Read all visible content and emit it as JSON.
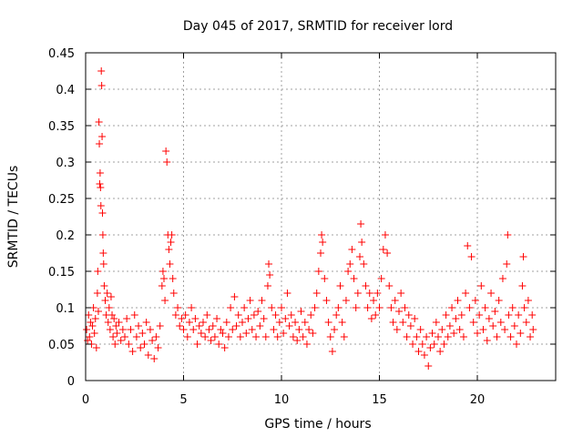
{
  "chart_data": {
    "type": "scatter",
    "title": "Day 045 of 2017, SRMTID for receiver lord",
    "xlabel": "GPS time / hours",
    "ylabel": "SRMTID / TECUs",
    "xlim": [
      0,
      24
    ],
    "ylim": [
      0,
      0.45
    ],
    "xticks": [
      0,
      5,
      10,
      15,
      20
    ],
    "xtick_labels": [
      "0",
      "5",
      "10",
      "15",
      "20"
    ],
    "yticks": [
      0,
      0.05,
      0.1,
      0.15,
      0.2,
      0.25,
      0.3,
      0.35,
      0.4,
      0.45
    ],
    "ytick_labels": [
      "0",
      "0.05",
      "0.1",
      "0.15",
      "0.2",
      "0.25",
      "0.3",
      "0.35",
      "0.4",
      "0.45"
    ],
    "grid": true,
    "marker": "+",
    "color": "#ff0000",
    "series": [
      {
        "name": "SRMTID",
        "points": [
          [
            0.05,
            0.07
          ],
          [
            0.1,
            0.055
          ],
          [
            0.15,
            0.09
          ],
          [
            0.2,
            0.06
          ],
          [
            0.25,
            0.08
          ],
          [
            0.3,
            0.05
          ],
          [
            0.35,
            0.075
          ],
          [
            0.4,
            0.1
          ],
          [
            0.45,
            0.065
          ],
          [
            0.5,
            0.085
          ],
          [
            0.55,
            0.045
          ],
          [
            0.6,
            0.12
          ],
          [
            0.62,
            0.15
          ],
          [
            0.65,
            0.095
          ],
          [
            0.68,
            0.355
          ],
          [
            0.7,
            0.325
          ],
          [
            0.72,
            0.27
          ],
          [
            0.74,
            0.285
          ],
          [
            0.76,
            0.265
          ],
          [
            0.78,
            0.24
          ],
          [
            0.8,
            0.425
          ],
          [
            0.82,
            0.405
          ],
          [
            0.84,
            0.335
          ],
          [
            0.86,
            0.23
          ],
          [
            0.88,
            0.2
          ],
          [
            0.9,
            0.175
          ],
          [
            0.92,
            0.16
          ],
          [
            0.95,
            0.13
          ],
          [
            1.0,
            0.11
          ],
          [
            1.05,
            0.09
          ],
          [
            1.1,
            0.12
          ],
          [
            1.15,
            0.08
          ],
          [
            1.2,
            0.1
          ],
          [
            1.25,
            0.07
          ],
          [
            1.3,
            0.115
          ],
          [
            1.35,
            0.09
          ],
          [
            1.4,
            0.06
          ],
          [
            1.45,
            0.085
          ],
          [
            1.5,
            0.05
          ],
          [
            1.55,
            0.075
          ],
          [
            1.6,
            0.065
          ],
          [
            1.7,
            0.08
          ],
          [
            1.8,
            0.055
          ],
          [
            1.9,
            0.07
          ],
          [
            2.0,
            0.06
          ],
          [
            2.1,
            0.085
          ],
          [
            2.2,
            0.05
          ],
          [
            2.3,
            0.07
          ],
          [
            2.4,
            0.04
          ],
          [
            2.5,
            0.09
          ],
          [
            2.6,
            0.06
          ],
          [
            2.7,
            0.075
          ],
          [
            2.8,
            0.045
          ],
          [
            2.9,
            0.065
          ],
          [
            3.0,
            0.05
          ],
          [
            3.1,
            0.08
          ],
          [
            3.2,
            0.035
          ],
          [
            3.3,
            0.07
          ],
          [
            3.4,
            0.055
          ],
          [
            3.5,
            0.03
          ],
          [
            3.6,
            0.06
          ],
          [
            3.7,
            0.045
          ],
          [
            3.8,
            0.075
          ],
          [
            3.9,
            0.13
          ],
          [
            3.95,
            0.15
          ],
          [
            4.0,
            0.14
          ],
          [
            4.05,
            0.11
          ],
          [
            4.1,
            0.315
          ],
          [
            4.15,
            0.3
          ],
          [
            4.2,
            0.2
          ],
          [
            4.25,
            0.18
          ],
          [
            4.3,
            0.16
          ],
          [
            4.35,
            0.19
          ],
          [
            4.4,
            0.2
          ],
          [
            4.45,
            0.14
          ],
          [
            4.5,
            0.12
          ],
          [
            4.6,
            0.09
          ],
          [
            4.7,
            0.1
          ],
          [
            4.8,
            0.075
          ],
          [
            4.9,
            0.085
          ],
          [
            5.0,
            0.07
          ],
          [
            5.1,
            0.09
          ],
          [
            5.2,
            0.06
          ],
          [
            5.3,
            0.08
          ],
          [
            5.4,
            0.1
          ],
          [
            5.5,
            0.07
          ],
          [
            5.6,
            0.085
          ],
          [
            5.7,
            0.05
          ],
          [
            5.8,
            0.075
          ],
          [
            5.9,
            0.065
          ],
          [
            6.0,
            0.08
          ],
          [
            6.1,
            0.06
          ],
          [
            6.2,
            0.09
          ],
          [
            6.3,
            0.07
          ],
          [
            6.4,
            0.055
          ],
          [
            6.5,
            0.075
          ],
          [
            6.6,
            0.06
          ],
          [
            6.7,
            0.085
          ],
          [
            6.8,
            0.05
          ],
          [
            6.9,
            0.07
          ],
          [
            7.0,
            0.065
          ],
          [
            7.1,
            0.045
          ],
          [
            7.2,
            0.08
          ],
          [
            7.3,
            0.06
          ],
          [
            7.4,
            0.1
          ],
          [
            7.5,
            0.07
          ],
          [
            7.6,
            0.115
          ],
          [
            7.7,
            0.075
          ],
          [
            7.8,
            0.09
          ],
          [
            7.9,
            0.06
          ],
          [
            8.0,
            0.08
          ],
          [
            8.1,
            0.1
          ],
          [
            8.2,
            0.065
          ],
          [
            8.3,
            0.085
          ],
          [
            8.4,
            0.11
          ],
          [
            8.5,
            0.07
          ],
          [
            8.6,
            0.09
          ],
          [
            8.7,
            0.06
          ],
          [
            8.8,
            0.095
          ],
          [
            8.9,
            0.075
          ],
          [
            9.0,
            0.11
          ],
          [
            9.1,
            0.085
          ],
          [
            9.2,
            0.06
          ],
          [
            9.3,
            0.13
          ],
          [
            9.35,
            0.16
          ],
          [
            9.4,
            0.145
          ],
          [
            9.5,
            0.1
          ],
          [
            9.6,
            0.07
          ],
          [
            9.7,
            0.09
          ],
          [
            9.8,
            0.06
          ],
          [
            9.9,
            0.08
          ],
          [
            10.0,
            0.1
          ],
          [
            10.1,
            0.065
          ],
          [
            10.2,
            0.085
          ],
          [
            10.3,
            0.12
          ],
          [
            10.4,
            0.075
          ],
          [
            10.5,
            0.09
          ],
          [
            10.6,
            0.06
          ],
          [
            10.7,
            0.08
          ],
          [
            10.8,
            0.055
          ],
          [
            10.9,
            0.07
          ],
          [
            11.0,
            0.095
          ],
          [
            11.1,
            0.06
          ],
          [
            11.2,
            0.08
          ],
          [
            11.3,
            0.05
          ],
          [
            11.4,
            0.07
          ],
          [
            11.5,
            0.09
          ],
          [
            11.6,
            0.065
          ],
          [
            11.7,
            0.1
          ],
          [
            11.8,
            0.12
          ],
          [
            11.9,
            0.15
          ],
          [
            12.0,
            0.175
          ],
          [
            12.05,
            0.2
          ],
          [
            12.1,
            0.19
          ],
          [
            12.2,
            0.14
          ],
          [
            12.3,
            0.11
          ],
          [
            12.4,
            0.08
          ],
          [
            12.5,
            0.06
          ],
          [
            12.6,
            0.04
          ],
          [
            12.7,
            0.07
          ],
          [
            12.8,
            0.09
          ],
          [
            12.9,
            0.1
          ],
          [
            13.0,
            0.13
          ],
          [
            13.1,
            0.08
          ],
          [
            13.2,
            0.06
          ],
          [
            13.3,
            0.11
          ],
          [
            13.4,
            0.15
          ],
          [
            13.5,
            0.16
          ],
          [
            13.6,
            0.18
          ],
          [
            13.7,
            0.14
          ],
          [
            13.8,
            0.1
          ],
          [
            13.9,
            0.12
          ],
          [
            14.0,
            0.17
          ],
          [
            14.05,
            0.215
          ],
          [
            14.1,
            0.19
          ],
          [
            14.2,
            0.16
          ],
          [
            14.3,
            0.13
          ],
          [
            14.4,
            0.1
          ],
          [
            14.5,
            0.12
          ],
          [
            14.6,
            0.085
          ],
          [
            14.7,
            0.11
          ],
          [
            14.8,
            0.09
          ],
          [
            14.9,
            0.12
          ],
          [
            15.0,
            0.1
          ],
          [
            15.1,
            0.14
          ],
          [
            15.2,
            0.18
          ],
          [
            15.3,
            0.2
          ],
          [
            15.4,
            0.175
          ],
          [
            15.5,
            0.13
          ],
          [
            15.6,
            0.1
          ],
          [
            15.7,
            0.08
          ],
          [
            15.8,
            0.11
          ],
          [
            15.9,
            0.07
          ],
          [
            16.0,
            0.095
          ],
          [
            16.1,
            0.12
          ],
          [
            16.2,
            0.08
          ],
          [
            16.3,
            0.1
          ],
          [
            16.4,
            0.06
          ],
          [
            16.5,
            0.09
          ],
          [
            16.6,
            0.075
          ],
          [
            16.7,
            0.05
          ],
          [
            16.8,
            0.085
          ],
          [
            16.9,
            0.06
          ],
          [
            17.0,
            0.04
          ],
          [
            17.1,
            0.07
          ],
          [
            17.2,
            0.05
          ],
          [
            17.3,
            0.035
          ],
          [
            17.4,
            0.06
          ],
          [
            17.5,
            0.02
          ],
          [
            17.6,
            0.045
          ],
          [
            17.7,
            0.065
          ],
          [
            17.8,
            0.05
          ],
          [
            17.9,
            0.08
          ],
          [
            18.0,
            0.06
          ],
          [
            18.1,
            0.04
          ],
          [
            18.2,
            0.07
          ],
          [
            18.3,
            0.05
          ],
          [
            18.4,
            0.09
          ],
          [
            18.5,
            0.06
          ],
          [
            18.6,
            0.075
          ],
          [
            18.7,
            0.1
          ],
          [
            18.8,
            0.065
          ],
          [
            18.9,
            0.085
          ],
          [
            19.0,
            0.11
          ],
          [
            19.1,
            0.07
          ],
          [
            19.2,
            0.09
          ],
          [
            19.3,
            0.06
          ],
          [
            19.4,
            0.12
          ],
          [
            19.5,
            0.185
          ],
          [
            19.6,
            0.1
          ],
          [
            19.7,
            0.17
          ],
          [
            19.8,
            0.08
          ],
          [
            19.9,
            0.11
          ],
          [
            20.0,
            0.065
          ],
          [
            20.1,
            0.09
          ],
          [
            20.2,
            0.13
          ],
          [
            20.3,
            0.07
          ],
          [
            20.4,
            0.1
          ],
          [
            20.5,
            0.055
          ],
          [
            20.6,
            0.085
          ],
          [
            20.7,
            0.12
          ],
          [
            20.8,
            0.075
          ],
          [
            20.9,
            0.095
          ],
          [
            21.0,
            0.06
          ],
          [
            21.1,
            0.11
          ],
          [
            21.2,
            0.08
          ],
          [
            21.3,
            0.14
          ],
          [
            21.4,
            0.07
          ],
          [
            21.5,
            0.16
          ],
          [
            21.55,
            0.2
          ],
          [
            21.6,
            0.09
          ],
          [
            21.7,
            0.06
          ],
          [
            21.8,
            0.1
          ],
          [
            21.9,
            0.075
          ],
          [
            22.0,
            0.05
          ],
          [
            22.1,
            0.09
          ],
          [
            22.2,
            0.065
          ],
          [
            22.3,
            0.13
          ],
          [
            22.35,
            0.17
          ],
          [
            22.4,
            0.1
          ],
          [
            22.5,
            0.08
          ],
          [
            22.6,
            0.11
          ],
          [
            22.7,
            0.06
          ],
          [
            22.8,
            0.09
          ],
          [
            22.85,
            0.07
          ]
        ]
      }
    ]
  }
}
